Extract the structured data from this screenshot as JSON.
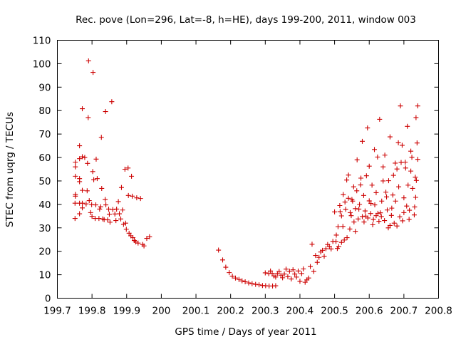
{
  "chart_data": {
    "type": "scatter",
    "title": "Rec. pove (Lon=296, Lat=-8, h=HE), days 199-200, 2011, window 003",
    "xlabel": "GPS time / Days of year 2011",
    "ylabel": "STEC from uqrg / TECUs",
    "xlim": [
      199.7,
      200.8
    ],
    "ylim": [
      0,
      110
    ],
    "xticks": [
      199.7,
      199.8,
      199.9,
      200,
      200.1,
      200.2,
      200.3,
      200.4,
      200.5,
      200.6,
      200.7,
      200.8
    ],
    "xtick_labels": [
      "199.7",
      "199.8",
      "199.9",
      "200",
      "200.1",
      "200.2",
      "200.3",
      "200.4",
      "200.5",
      "200.6",
      "200.7",
      "200.8"
    ],
    "yticks": [
      0,
      10,
      20,
      30,
      40,
      50,
      60,
      70,
      80,
      90,
      100,
      110
    ],
    "ytick_labels": [
      "0",
      "10",
      "20",
      "30",
      "40",
      "50",
      "60",
      "70",
      "80",
      "90",
      "100",
      "110"
    ],
    "grid": false,
    "marker": "+",
    "marker_color": "#cc0000",
    "series": [
      {
        "name": "STEC",
        "points": [
          [
            199.751,
            34.0
          ],
          [
            199.751,
            40.5
          ],
          [
            199.752,
            43.5
          ],
          [
            199.752,
            44.3
          ],
          [
            199.752,
            52.0
          ],
          [
            199.752,
            56.0
          ],
          [
            199.752,
            58.0
          ],
          [
            199.764,
            36.0
          ],
          [
            199.764,
            40.5
          ],
          [
            199.764,
            49.7
          ],
          [
            199.764,
            51.0
          ],
          [
            199.764,
            59.5
          ],
          [
            199.764,
            65.0
          ],
          [
            199.772,
            38.5
          ],
          [
            199.772,
            40.5
          ],
          [
            199.772,
            46.0
          ],
          [
            199.772,
            60.3
          ],
          [
            199.772,
            80.8
          ],
          [
            199.779,
            60.0
          ],
          [
            199.783,
            40.2
          ],
          [
            199.786,
            45.8
          ],
          [
            199.787,
            57.5
          ],
          [
            199.789,
            77.0
          ],
          [
            199.79,
            101.2
          ],
          [
            199.792,
            41.6
          ],
          [
            199.796,
            36.5
          ],
          [
            199.799,
            39.9
          ],
          [
            199.8,
            34.9
          ],
          [
            199.802,
            54.0
          ],
          [
            199.803,
            96.3
          ],
          [
            199.805,
            50.5
          ],
          [
            199.809,
            34.0
          ],
          [
            199.811,
            39.8
          ],
          [
            199.812,
            59.3
          ],
          [
            199.815,
            51.0
          ],
          [
            199.82,
            34.0
          ],
          [
            199.822,
            38.0
          ],
          [
            199.825,
            39.0
          ],
          [
            199.827,
            68.6
          ],
          [
            199.828,
            46.8
          ],
          [
            199.831,
            33.8
          ],
          [
            199.835,
            33.5
          ],
          [
            199.838,
            42.1
          ],
          [
            199.839,
            79.6
          ],
          [
            199.84,
            39.8
          ],
          [
            199.845,
            33.4
          ],
          [
            199.848,
            38.0
          ],
          [
            199.85,
            35.8
          ],
          [
            199.852,
            32.4
          ],
          [
            199.857,
            83.8
          ],
          [
            199.86,
            37.8
          ],
          [
            199.866,
            35.9
          ],
          [
            199.869,
            33.1
          ],
          [
            199.871,
            38.0
          ],
          [
            199.876,
            41.2
          ],
          [
            199.879,
            36.0
          ],
          [
            199.883,
            33.8
          ],
          [
            199.885,
            47.2
          ],
          [
            199.888,
            37.6
          ],
          [
            199.891,
            31.5
          ],
          [
            199.895,
            55.0
          ],
          [
            199.897,
            32.0
          ],
          [
            199.899,
            29.4
          ],
          [
            199.904,
            55.5
          ],
          [
            199.905,
            43.8
          ],
          [
            199.907,
            27.7
          ],
          [
            199.912,
            26.6
          ],
          [
            199.914,
            52.0
          ],
          [
            199.916,
            43.5
          ],
          [
            199.918,
            25.8
          ],
          [
            199.922,
            24.6
          ],
          [
            199.926,
            24.0
          ],
          [
            199.929,
            42.8
          ],
          [
            199.933,
            23.5
          ],
          [
            199.94,
            42.5
          ],
          [
            199.946,
            22.9
          ],
          [
            199.95,
            22.3
          ],
          [
            199.958,
            25.5
          ],
          [
            199.966,
            26.2
          ],
          [
            200.165,
            20.5
          ],
          [
            200.177,
            16.3
          ],
          [
            200.186,
            13.2
          ],
          [
            200.196,
            10.9
          ],
          [
            200.205,
            9.4
          ],
          [
            200.214,
            8.6
          ],
          [
            200.224,
            8.0
          ],
          [
            200.233,
            7.4
          ],
          [
            200.242,
            7.0
          ],
          [
            200.252,
            6.5
          ],
          [
            200.262,
            6.2
          ],
          [
            200.272,
            5.9
          ],
          [
            200.282,
            5.7
          ],
          [
            200.292,
            5.4
          ],
          [
            200.301,
            5.3
          ],
          [
            200.311,
            5.2
          ],
          [
            200.321,
            5.2
          ],
          [
            200.33,
            5.3
          ],
          [
            200.3,
            10.8
          ],
          [
            200.31,
            10.5
          ],
          [
            200.315,
            11.6
          ],
          [
            200.32,
            10.6
          ],
          [
            200.325,
            9.5
          ],
          [
            200.33,
            9.0
          ],
          [
            200.335,
            10.5
          ],
          [
            200.34,
            11.4
          ],
          [
            200.345,
            9.8
          ],
          [
            200.35,
            8.7
          ],
          [
            200.355,
            10.3
          ],
          [
            200.36,
            12.4
          ],
          [
            200.365,
            9.2
          ],
          [
            200.37,
            11.5
          ],
          [
            200.375,
            8.2
          ],
          [
            200.38,
            12.1
          ],
          [
            200.385,
            10.3
          ],
          [
            200.39,
            9.0
          ],
          [
            200.395,
            11.6
          ],
          [
            200.4,
            7.2
          ],
          [
            200.405,
            10.5
          ],
          [
            200.41,
            12.5
          ],
          [
            200.415,
            6.8
          ],
          [
            200.42,
            7.8
          ],
          [
            200.425,
            8.6
          ],
          [
            200.43,
            13.5
          ],
          [
            200.435,
            23.0
          ],
          [
            200.44,
            11.4
          ],
          [
            200.445,
            18.2
          ],
          [
            200.45,
            15.3
          ],
          [
            200.455,
            17.4
          ],
          [
            200.46,
            19.7
          ],
          [
            200.465,
            20.4
          ],
          [
            200.47,
            17.9
          ],
          [
            200.475,
            21.1
          ],
          [
            200.48,
            22.9
          ],
          [
            200.485,
            22.1
          ],
          [
            200.49,
            21.0
          ],
          [
            200.495,
            24.2
          ],
          [
            200.5,
            36.8
          ],
          [
            200.505,
            26.9
          ],
          [
            200.51,
            30.5
          ],
          [
            200.515,
            39.5
          ],
          [
            200.52,
            35.1
          ],
          [
            200.525,
            44.2
          ],
          [
            200.53,
            41.0
          ],
          [
            200.535,
            50.4
          ],
          [
            200.54,
            52.5
          ],
          [
            200.545,
            36.5
          ],
          [
            200.55,
            42.1
          ],
          [
            200.555,
            47.5
          ],
          [
            200.56,
            28.5
          ],
          [
            200.565,
            59.0
          ],
          [
            200.57,
            38.0
          ],
          [
            200.575,
            48.3
          ],
          [
            200.58,
            66.9
          ],
          [
            200.585,
            32.5
          ],
          [
            200.59,
            35.0
          ],
          [
            200.595,
            72.6
          ],
          [
            200.6,
            56.3
          ],
          [
            200.605,
            40.4
          ],
          [
            200.61,
            31.3
          ],
          [
            200.615,
            63.4
          ],
          [
            200.62,
            45.0
          ],
          [
            200.625,
            36.2
          ],
          [
            200.63,
            76.3
          ],
          [
            200.635,
            34.8
          ],
          [
            200.64,
            50.0
          ],
          [
            200.645,
            61.0
          ],
          [
            200.65,
            43.2
          ],
          [
            200.655,
            30.0
          ],
          [
            200.66,
            68.8
          ],
          [
            200.665,
            38.4
          ],
          [
            200.67,
            52.4
          ],
          [
            200.675,
            57.6
          ],
          [
            200.68,
            30.8
          ],
          [
            200.685,
            47.5
          ],
          [
            200.69,
            82.0
          ],
          [
            200.695,
            65.2
          ],
          [
            200.7,
            36.5
          ],
          [
            200.705,
            55.5
          ],
          [
            200.71,
            73.3
          ],
          [
            200.715,
            33.6
          ],
          [
            200.72,
            62.7
          ],
          [
            200.725,
            46.8
          ],
          [
            200.73,
            35.5
          ],
          [
            200.735,
            77.0
          ],
          [
            200.74,
            59.2
          ],
          [
            200.74,
            82.0
          ],
          [
            200.738,
            66.2
          ],
          [
            200.736,
            50.2
          ],
          [
            200.734,
            43.0
          ],
          [
            200.733,
            51.6
          ],
          [
            200.731,
            38.9
          ],
          [
            200.723,
            60.1
          ],
          [
            200.72,
            54.2
          ],
          [
            200.716,
            37.5
          ],
          [
            200.712,
            48.2
          ],
          [
            200.708,
            39.3
          ],
          [
            200.704,
            58.0
          ],
          [
            200.7,
            42.8
          ],
          [
            200.696,
            33.0
          ],
          [
            200.692,
            57.9
          ],
          [
            200.688,
            34.7
          ],
          [
            200.684,
            66.3
          ],
          [
            200.68,
            55.1
          ],
          [
            200.676,
            41.4
          ],
          [
            200.672,
            32.0
          ],
          [
            200.668,
            44.0
          ],
          [
            200.664,
            35.3
          ],
          [
            200.66,
            31.0
          ],
          [
            200.656,
            50.1
          ],
          [
            200.652,
            37.6
          ],
          [
            200.648,
            45.2
          ],
          [
            200.644,
            33.1
          ],
          [
            200.64,
            56.0
          ],
          [
            200.636,
            41.4
          ],
          [
            200.632,
            36.4
          ],
          [
            200.628,
            32.8
          ],
          [
            200.624,
            60.2
          ],
          [
            200.62,
            35.2
          ],
          [
            200.616,
            39.8
          ],
          [
            200.612,
            33.6
          ],
          [
            200.608,
            48.2
          ],
          [
            200.604,
            36.1
          ],
          [
            200.6,
            41.5
          ],
          [
            200.596,
            34.2
          ],
          [
            200.592,
            52.2
          ],
          [
            200.588,
            37.2
          ],
          [
            200.584,
            43.8
          ],
          [
            200.58,
            34.8
          ],
          [
            200.576,
            51.2
          ],
          [
            200.572,
            40.0
          ],
          [
            200.568,
            33.8
          ],
          [
            200.564,
            45.8
          ],
          [
            200.56,
            38.2
          ],
          [
            200.556,
            32.5
          ],
          [
            200.552,
            41.4
          ],
          [
            200.548,
            35.2
          ],
          [
            200.544,
            29.5
          ],
          [
            200.54,
            42.6
          ],
          [
            200.536,
            25.8
          ],
          [
            200.532,
            37.9
          ],
          [
            200.528,
            24.8
          ],
          [
            200.524,
            30.6
          ],
          [
            200.52,
            23.8
          ],
          [
            200.516,
            36.9
          ],
          [
            200.512,
            22.0
          ],
          [
            200.508,
            21.2
          ],
          [
            200.504,
            24.2
          ]
        ]
      }
    ]
  }
}
